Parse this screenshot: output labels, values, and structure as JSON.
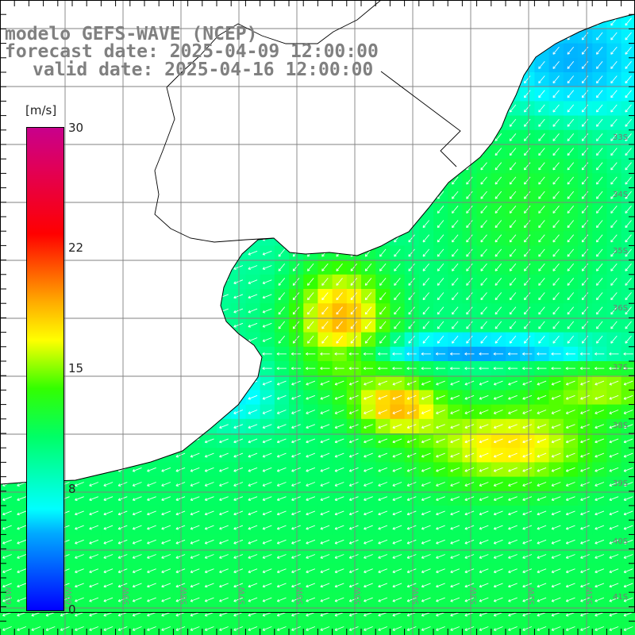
{
  "titles": {
    "line1": "modelo GEFS-WAVE (NCEP)",
    "line2": "forecast date: 2025-04-09 12:00:00",
    "line3": "valid date: 2025-04-16 12:00:00"
  },
  "colorbar": {
    "unit": "[m/s]",
    "ticks": [
      "30",
      "22",
      "15",
      "8",
      "0"
    ]
  },
  "lat_labels": [
    "33S",
    "34S",
    "35S",
    "36S",
    "37S",
    "38S",
    "39S",
    "40S",
    "41S"
  ],
  "lon_labels": [
    "61W",
    "60W",
    "59W",
    "58W",
    "57W",
    "56W",
    "55W",
    "54W",
    "53W",
    "52W",
    "51W"
  ]
}
